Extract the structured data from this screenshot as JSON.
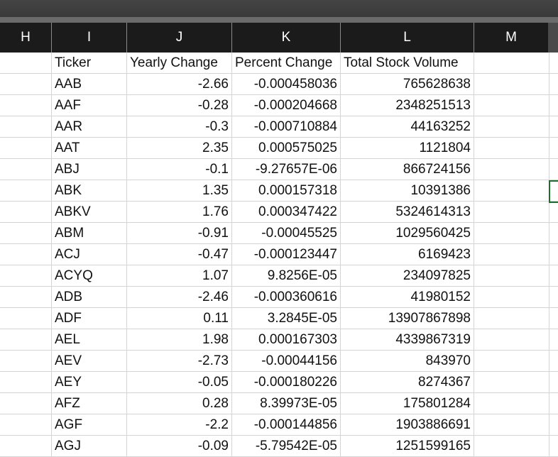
{
  "columns": [
    "H",
    "I",
    "J",
    "K",
    "L",
    "M"
  ],
  "headers": {
    "ticker": "Ticker",
    "yearly_change": "Yearly Change",
    "percent_change": "Percent Change",
    "total_stock_volume": "Total Stock Volume"
  },
  "rows": [
    {
      "ticker": "AAB",
      "yearly_change": "-2.66",
      "percent_change": "-0.000458036",
      "volume": "765628638"
    },
    {
      "ticker": "AAF",
      "yearly_change": "-0.28",
      "percent_change": "-0.000204668",
      "volume": "2348251513"
    },
    {
      "ticker": "AAR",
      "yearly_change": "-0.3",
      "percent_change": "-0.000710884",
      "volume": "44163252"
    },
    {
      "ticker": "AAT",
      "yearly_change": "2.35",
      "percent_change": "0.000575025",
      "volume": "1121804"
    },
    {
      "ticker": "ABJ",
      "yearly_change": "-0.1",
      "percent_change": "-9.27657E-06",
      "volume": "866724156"
    },
    {
      "ticker": "ABK",
      "yearly_change": "1.35",
      "percent_change": "0.000157318",
      "volume": "10391386"
    },
    {
      "ticker": "ABKV",
      "yearly_change": "1.76",
      "percent_change": "0.000347422",
      "volume": "5324614313"
    },
    {
      "ticker": "ABM",
      "yearly_change": "-0.91",
      "percent_change": "-0.00045525",
      "volume": "1029560425"
    },
    {
      "ticker": "ACJ",
      "yearly_change": "-0.47",
      "percent_change": "-0.000123447",
      "volume": "6169423"
    },
    {
      "ticker": "ACYQ",
      "yearly_change": "1.07",
      "percent_change": "9.8256E-05",
      "volume": "234097825"
    },
    {
      "ticker": "ADB",
      "yearly_change": "-2.46",
      "percent_change": "-0.000360616",
      "volume": "41980152"
    },
    {
      "ticker": "ADF",
      "yearly_change": "0.11",
      "percent_change": "3.2845E-05",
      "volume": "13907867898"
    },
    {
      "ticker": "AEL",
      "yearly_change": "1.98",
      "percent_change": "0.000167303",
      "volume": "4339867319"
    },
    {
      "ticker": "AEV",
      "yearly_change": "-2.73",
      "percent_change": "-0.00044156",
      "volume": "843970"
    },
    {
      "ticker": "AEY",
      "yearly_change": "-0.05",
      "percent_change": "-0.000180226",
      "volume": "8274367"
    },
    {
      "ticker": "AFZ",
      "yearly_change": "0.28",
      "percent_change": "8.39973E-05",
      "volume": "175801284"
    },
    {
      "ticker": "AGF",
      "yearly_change": "-2.2",
      "percent_change": "-0.000144856",
      "volume": "1903886691"
    },
    {
      "ticker": "AGJ",
      "yearly_change": "-0.09",
      "percent_change": "-5.79542E-05",
      "volume": "1251599165"
    }
  ]
}
